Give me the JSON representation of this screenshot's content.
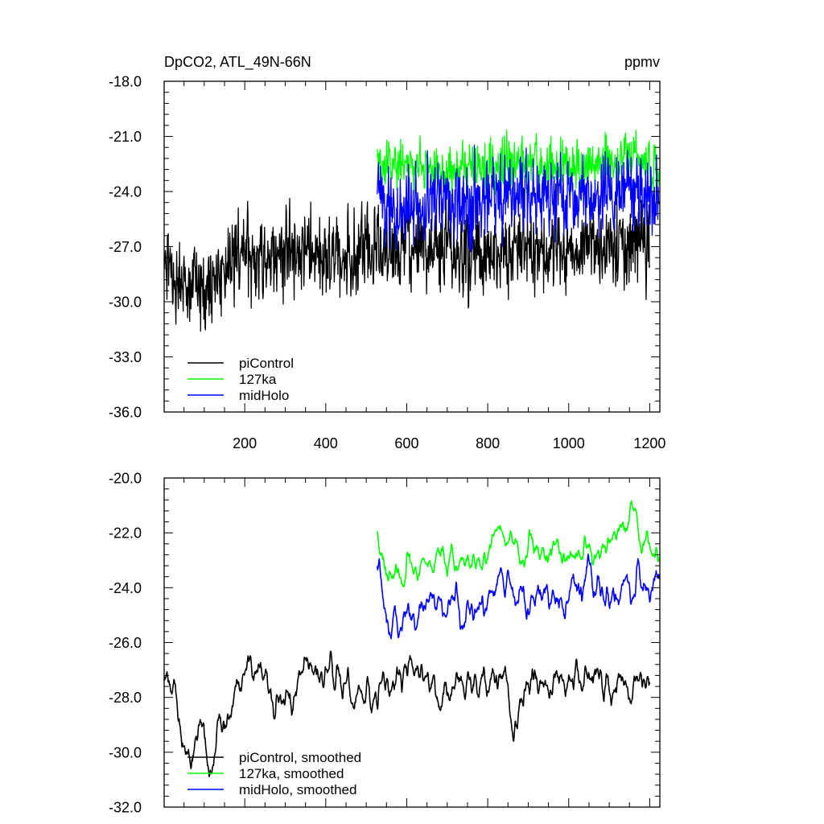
{
  "header": {
    "left_title": "DpCO2, ATL_49N-66N",
    "right_title": "ppmv"
  },
  "chart_data": [
    {
      "type": "line",
      "panel": "top",
      "xlim": [
        1,
        1225
      ],
      "ylim": [
        -36,
        -18
      ],
      "x_ticks": [
        200,
        400,
        600,
        800,
        1000,
        1200
      ],
      "x_tick_labels": [
        "200",
        "400",
        "600",
        "800",
        "1000",
        "1200"
      ],
      "y_ticks": [
        -36,
        -33,
        -30,
        -27,
        -24,
        -21,
        -18
      ],
      "y_tick_labels": [
        "-36.0",
        "-33.0",
        "-30.0",
        "-27.0",
        "-24.0",
        "-21.0",
        "-18.0"
      ],
      "legend_position": "bottom-left",
      "series": [
        {
          "name": "piControl",
          "color": "#000000",
          "x_range": [
            1,
            1200
          ],
          "mean": -27.6,
          "noise": 1.4,
          "knots": [
            [
              1,
              -28.2
            ],
            [
              40,
              -28.6
            ],
            [
              60,
              -29.8
            ],
            [
              100,
              -29.0
            ],
            [
              150,
              -28.3
            ],
            [
              200,
              -27.5
            ],
            [
              300,
              -27.3
            ],
            [
              400,
              -27.5
            ],
            [
              500,
              -27.4
            ],
            [
              600,
              -27.2
            ],
            [
              700,
              -27.0
            ],
            [
              800,
              -27.2
            ],
            [
              900,
              -27.3
            ],
            [
              1000,
              -27.0
            ],
            [
              1100,
              -26.8
            ],
            [
              1200,
              -27.0
            ]
          ]
        },
        {
          "name": "127ka",
          "color": "#00ff00",
          "x_range": [
            527,
            1225
          ],
          "mean": -22.6,
          "noise": 0.8,
          "knots": [
            [
              527,
              -22.6
            ],
            [
              700,
              -22.8
            ],
            [
              850,
              -22.5
            ],
            [
              1000,
              -22.6
            ],
            [
              1150,
              -22.2
            ],
            [
              1225,
              -22.8
            ]
          ]
        },
        {
          "name": "midHolo",
          "color": "#0000ff",
          "x_range": [
            527,
            1225
          ],
          "mean": -24.5,
          "noise": 1.3,
          "knots": [
            [
              527,
              -24.5
            ],
            [
              600,
              -25.0
            ],
            [
              750,
              -24.6
            ],
            [
              850,
              -24.2
            ],
            [
              1000,
              -24.3
            ],
            [
              1150,
              -24.0
            ],
            [
              1225,
              -24.0
            ]
          ]
        }
      ]
    },
    {
      "type": "line",
      "panel": "bottom",
      "xlim": [
        1,
        1225
      ],
      "ylim": [
        -32,
        -20
      ],
      "y_ticks": [
        -32,
        -30,
        -28,
        -26,
        -24,
        -22,
        -20
      ],
      "y_tick_labels": [
        "-32.0",
        "-30.0",
        "-28.0",
        "-26.0",
        "-24.0",
        "-22.0",
        "-20.0"
      ],
      "legend_position": "bottom-left",
      "series": [
        {
          "name": "piControl, smoothed",
          "color": "#000000",
          "x_range": [
            1,
            1200
          ],
          "noise": 0.45,
          "knots": [
            [
              1,
              -27.5
            ],
            [
              15,
              -27.2
            ],
            [
              30,
              -27.6
            ],
            [
              40,
              -29.0
            ],
            [
              55,
              -29.8
            ],
            [
              65,
              -31.2
            ],
            [
              75,
              -30.3
            ],
            [
              90,
              -29.2
            ],
            [
              110,
              -29.6
            ],
            [
              130,
              -29.5
            ],
            [
              160,
              -28.6
            ],
            [
              180,
              -27.0
            ],
            [
              200,
              -27.2
            ],
            [
              260,
              -27.3
            ],
            [
              300,
              -28.2
            ],
            [
              350,
              -27.0
            ],
            [
              400,
              -27.2
            ],
            [
              450,
              -27.5
            ],
            [
              500,
              -27.8
            ],
            [
              550,
              -27.5
            ],
            [
              600,
              -27.2
            ],
            [
              650,
              -27.5
            ],
            [
              700,
              -27.6
            ],
            [
              750,
              -27.6
            ],
            [
              800,
              -27.2
            ],
            [
              850,
              -27.4
            ],
            [
              860,
              -29.0
            ],
            [
              900,
              -27.4
            ],
            [
              950,
              -27.5
            ],
            [
              1000,
              -27.6
            ],
            [
              1050,
              -27.3
            ],
            [
              1100,
              -27.2
            ],
            [
              1150,
              -27.4
            ],
            [
              1200,
              -27.0
            ]
          ]
        },
        {
          "name": "127ka, smoothed",
          "color": "#00ff00",
          "x_range": [
            527,
            1225
          ],
          "noise": 0.35,
          "knots": [
            [
              527,
              -22.1
            ],
            [
              550,
              -23.3
            ],
            [
              650,
              -22.9
            ],
            [
              750,
              -23.0
            ],
            [
              830,
              -22.0
            ],
            [
              900,
              -22.7
            ],
            [
              1000,
              -22.8
            ],
            [
              1100,
              -22.6
            ],
            [
              1160,
              -21.2
            ],
            [
              1200,
              -22.4
            ],
            [
              1225,
              -23.0
            ]
          ]
        },
        {
          "name": "midHolo, smoothed",
          "color": "#0000ff",
          "x_range": [
            527,
            1225
          ],
          "noise": 0.45,
          "knots": [
            [
              527,
              -23.3
            ],
            [
              545,
              -25.3
            ],
            [
              580,
              -25.8
            ],
            [
              620,
              -24.8
            ],
            [
              700,
              -24.5
            ],
            [
              780,
              -24.8
            ],
            [
              830,
              -23.6
            ],
            [
              870,
              -24.3
            ],
            [
              950,
              -24.3
            ],
            [
              1000,
              -24.2
            ],
            [
              1100,
              -24.0
            ],
            [
              1150,
              -23.8
            ],
            [
              1200,
              -23.6
            ],
            [
              1225,
              -23.6
            ]
          ]
        }
      ]
    }
  ]
}
